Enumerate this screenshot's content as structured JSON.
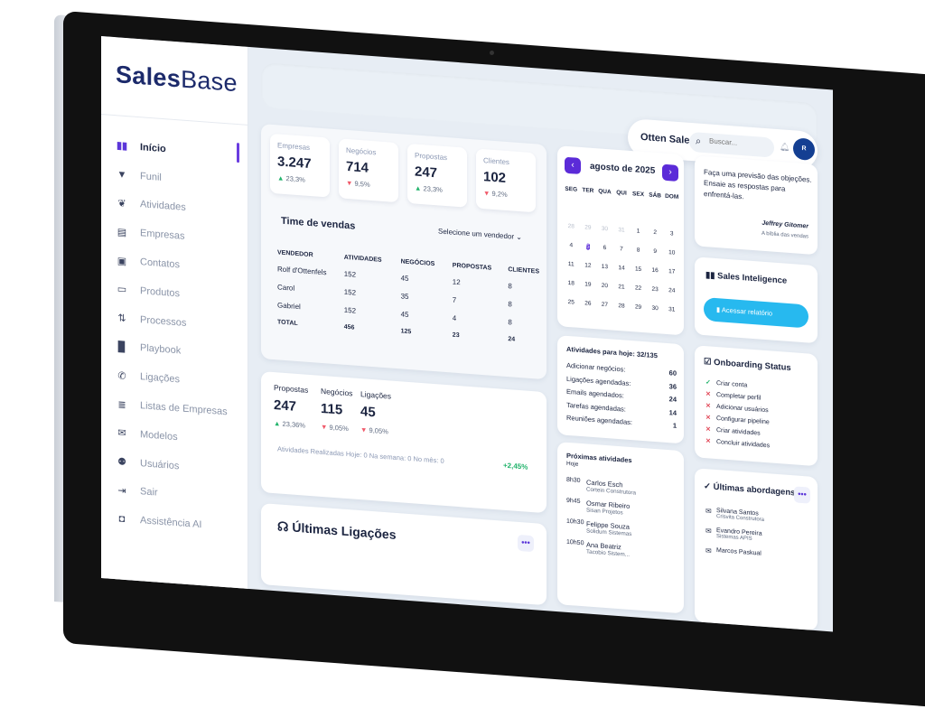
{
  "brand": {
    "bold": "Sales",
    "light": "Base"
  },
  "nav": [
    {
      "label": "Início",
      "icon": "bar-chart-icon",
      "glyph": "▮▮",
      "active": true
    },
    {
      "label": "Funil",
      "icon": "funnel-icon",
      "glyph": "▼"
    },
    {
      "label": "Atividades",
      "icon": "fire-icon",
      "glyph": "❦"
    },
    {
      "label": "Empresas",
      "icon": "building-icon",
      "glyph": "▤"
    },
    {
      "label": "Contatos",
      "icon": "contact-icon",
      "glyph": "▣"
    },
    {
      "label": "Produtos",
      "icon": "box-icon",
      "glyph": "▭"
    },
    {
      "label": "Processos",
      "icon": "process-icon",
      "glyph": "⇅"
    },
    {
      "label": "Playbook",
      "icon": "book-icon",
      "glyph": "▉"
    },
    {
      "label": "Ligações",
      "icon": "phone-icon",
      "glyph": "✆"
    },
    {
      "label": "Listas de Empresas",
      "icon": "list-search-icon",
      "glyph": "≣"
    },
    {
      "label": "Modelos",
      "icon": "mail-icon",
      "glyph": "✉"
    },
    {
      "label": "Usuários",
      "icon": "users-icon",
      "glyph": "⚉"
    },
    {
      "label": "Sair",
      "icon": "logout-icon",
      "glyph": "⇥"
    },
    {
      "label": "Assistência AI",
      "icon": "ai-icon",
      "glyph": "◘"
    }
  ],
  "header": {
    "user_name": "Otten Sales",
    "search_placeholder": "Buscar...",
    "avatar_initial": "R"
  },
  "metrics": [
    {
      "label": "Empresas",
      "value": "3.247",
      "delta": "23,3%",
      "trend": "up"
    },
    {
      "label": "Negócios",
      "value": "714",
      "delta": "9,5%",
      "trend": "down"
    },
    {
      "label": "Propostas",
      "value": "247",
      "delta": "23,3%",
      "trend": "up"
    },
    {
      "label": "Clientes",
      "value": "102",
      "delta": "9,2%",
      "trend": "down"
    }
  ],
  "team": {
    "title": "Time de vendas",
    "select_label": "Selecione um vendedor",
    "columns": [
      "VENDEDOR",
      "ATIVIDADES",
      "NEGÓCIOS",
      "PROPOSTAS",
      "CLIENTES"
    ],
    "rows": [
      [
        "Rolf d'Ottenfels",
        "152",
        "45",
        "12",
        "8"
      ],
      [
        "Carol",
        "152",
        "35",
        "7",
        "8"
      ],
      [
        "Gabriel",
        "152",
        "45",
        "4",
        "8"
      ]
    ],
    "total": [
      "TOTAL",
      "456",
      "125",
      "23",
      "24"
    ]
  },
  "stats": {
    "items": [
      {
        "label": "Propostas",
        "value": "247",
        "delta": "23,36%",
        "trend": "up"
      },
      {
        "label": "Negócios",
        "value": "115",
        "delta": "9,05%",
        "trend": "down"
      },
      {
        "label": "Ligações",
        "value": "45",
        "delta": "9,05%",
        "trend": "down"
      }
    ],
    "footer": "Atividades Realizadas   Hoje: 0   Na semana: 0   No mês: 0",
    "pct": "+2,45%"
  },
  "calls": {
    "title": "Últimas Ligações",
    "more": "•••"
  },
  "calendar": {
    "month": "agosto de 2025",
    "prev": "‹",
    "next": "›",
    "weekdays": [
      "SEG",
      "TER",
      "QUA",
      "QUI",
      "SEX",
      "SÁB",
      "DOM"
    ],
    "days": [
      [
        "28",
        "m"
      ],
      [
        "29",
        "m"
      ],
      [
        "30",
        "m"
      ],
      [
        "31",
        "m"
      ],
      [
        "1",
        ""
      ],
      [
        "2",
        ""
      ],
      [
        "3",
        ""
      ],
      [
        "4",
        ""
      ],
      [
        "5",
        "s"
      ],
      [
        "6",
        ""
      ],
      [
        "7",
        ""
      ],
      [
        "8",
        ""
      ],
      [
        "9",
        ""
      ],
      [
        "10",
        ""
      ],
      [
        "11",
        ""
      ],
      [
        "12",
        ""
      ],
      [
        "13",
        ""
      ],
      [
        "14",
        ""
      ],
      [
        "15",
        ""
      ],
      [
        "16",
        ""
      ],
      [
        "17",
        ""
      ],
      [
        "18",
        ""
      ],
      [
        "19",
        ""
      ],
      [
        "20",
        ""
      ],
      [
        "21",
        ""
      ],
      [
        "22",
        ""
      ],
      [
        "23",
        ""
      ],
      [
        "24",
        ""
      ],
      [
        "25",
        ""
      ],
      [
        "26",
        ""
      ],
      [
        "27",
        ""
      ],
      [
        "28",
        ""
      ],
      [
        "29",
        ""
      ],
      [
        "30",
        ""
      ],
      [
        "31",
        ""
      ]
    ]
  },
  "today": {
    "title": "Atividades para hoje: 32/135",
    "rows": [
      [
        "Adicionar negócios:",
        "60"
      ],
      [
        "Ligações agendadas:",
        "36"
      ],
      [
        "Emails agendados:",
        "24"
      ],
      [
        "Tarefas agendadas:",
        "14"
      ],
      [
        "Reuniões agendadas:",
        "1"
      ]
    ]
  },
  "upcoming": {
    "title": "Próximas atividades",
    "subtitle": "Hoje",
    "items": [
      {
        "time": "8h30",
        "name": "Carlos Esch",
        "company": "Cortein Construtora"
      },
      {
        "time": "9h45",
        "name": "Osmar Ribeiro",
        "company": "Sisan Projetos"
      },
      {
        "time": "10h30",
        "name": "Felippe Souza",
        "company": "Solidum Sistemas"
      },
      {
        "time": "10h50",
        "name": "Ana Beatriz",
        "company": "Tacobio Sistem..."
      }
    ]
  },
  "quote": {
    "text": "Faça uma previsão das objeções. Ensaie as respostas para enfrentá-las.",
    "author": "Jeffrey Gitomer",
    "source": "A bíblia das vendas"
  },
  "intel": {
    "title": "Sales Inteligence",
    "button": "Acessar relatório"
  },
  "onboarding": {
    "title": "Onboarding Status",
    "items": [
      {
        "label": "Criar conta",
        "done": true,
        "mark": "✓"
      },
      {
        "label": "Completar perfil",
        "done": false,
        "mark": "✕"
      },
      {
        "label": "Adicionar usuários",
        "done": false,
        "mark": "✕"
      },
      {
        "label": "Configurar pipeline",
        "done": false,
        "mark": "✕"
      },
      {
        "label": "Criar atividades",
        "done": false,
        "mark": "✕"
      },
      {
        "label": "Concluir atividades",
        "done": false,
        "mark": "✕"
      }
    ]
  },
  "approaches": {
    "title": "Últimas abordagens",
    "more": "•••",
    "items": [
      {
        "name": "Silvana Santos",
        "company": "Crisvita Construtora"
      },
      {
        "name": "Evandro Pereira",
        "company": "Sistemas APIS"
      },
      {
        "name": "Marcos Paskual",
        "company": ""
      }
    ]
  },
  "colors": {
    "accent": "#5b2bd8",
    "brand": "#1c2a6b",
    "cta": "#27b9ef",
    "up": "#21b36b",
    "down": "#f05a6a"
  }
}
